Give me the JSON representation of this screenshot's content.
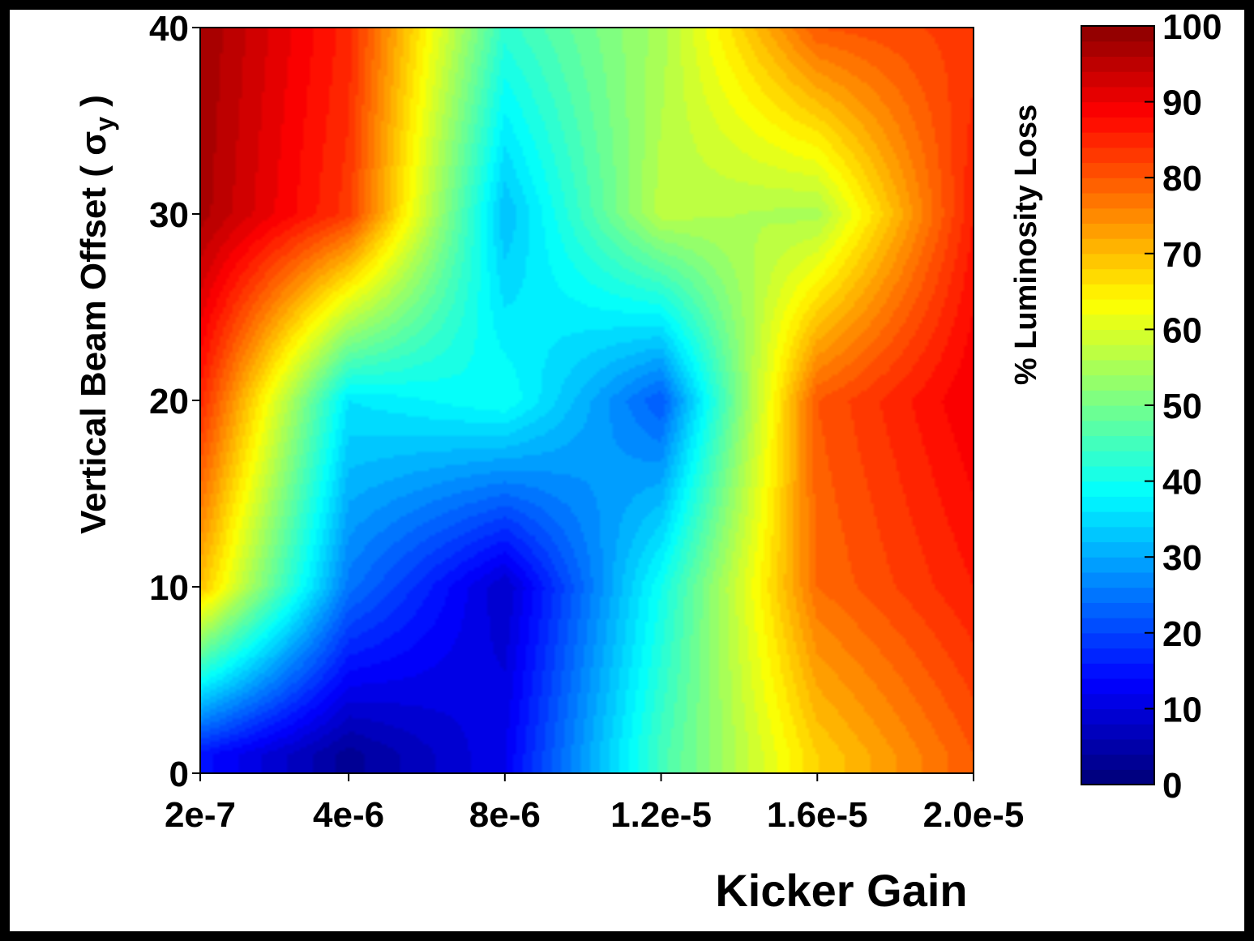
{
  "chart_data": {
    "type": "heatmap",
    "subtype": "filled-contour",
    "xlabel": "Kicker Gain",
    "ylabel": "Vertical Beam Offset ( σ",
    "ylabel_subscript": "y",
    "ylabel_close": " )",
    "colorbar_label": "% Luminosity Loss",
    "x_ticks": [
      {
        "value": 2e-07,
        "label": "2e-7"
      },
      {
        "value": 4e-06,
        "label": "4e-6"
      },
      {
        "value": 8e-06,
        "label": "8e-6"
      },
      {
        "value": 1.2e-05,
        "label": "1.2e-5"
      },
      {
        "value": 1.6e-05,
        "label": "1.6e-5"
      },
      {
        "value": 2e-05,
        "label": "2.0e-5"
      }
    ],
    "y_ticks": [
      {
        "value": 0,
        "label": "0"
      },
      {
        "value": 10,
        "label": "10"
      },
      {
        "value": 20,
        "label": "20"
      },
      {
        "value": 30,
        "label": "30"
      },
      {
        "value": 40,
        "label": "40"
      }
    ],
    "colorbar_ticks": [
      {
        "value": 0,
        "label": "0"
      },
      {
        "value": 10,
        "label": "10"
      },
      {
        "value": 20,
        "label": "20"
      },
      {
        "value": 30,
        "label": "30"
      },
      {
        "value": 40,
        "label": "40"
      },
      {
        "value": 50,
        "label": "50"
      },
      {
        "value": 60,
        "label": "60"
      },
      {
        "value": 70,
        "label": "70"
      },
      {
        "value": 80,
        "label": "80"
      },
      {
        "value": 90,
        "label": "90"
      },
      {
        "value": 100,
        "label": "100"
      }
    ],
    "xlim": [
      2e-07,
      2e-05
    ],
    "ylim": [
      0,
      40
    ],
    "zlim": [
      0,
      100
    ],
    "colormap": "jet",
    "contour_levels": 50,
    "z_samples": {
      "x": [
        2e-07,
        4e-06,
        8e-06,
        1.2e-05,
        1.6e-05,
        2e-05
      ],
      "y": [
        1,
        10,
        20,
        30,
        40
      ],
      "values": [
        [
          15,
          3,
          12,
          45,
          68,
          80
        ],
        [
          70,
          25,
          8,
          40,
          78,
          86
        ],
        [
          85,
          36,
          40,
          22,
          80,
          90
        ],
        [
          97,
          83,
          32,
          57,
          55,
          86
        ],
        [
          98,
          85,
          43,
          55,
          80,
          83
        ]
      ]
    }
  }
}
